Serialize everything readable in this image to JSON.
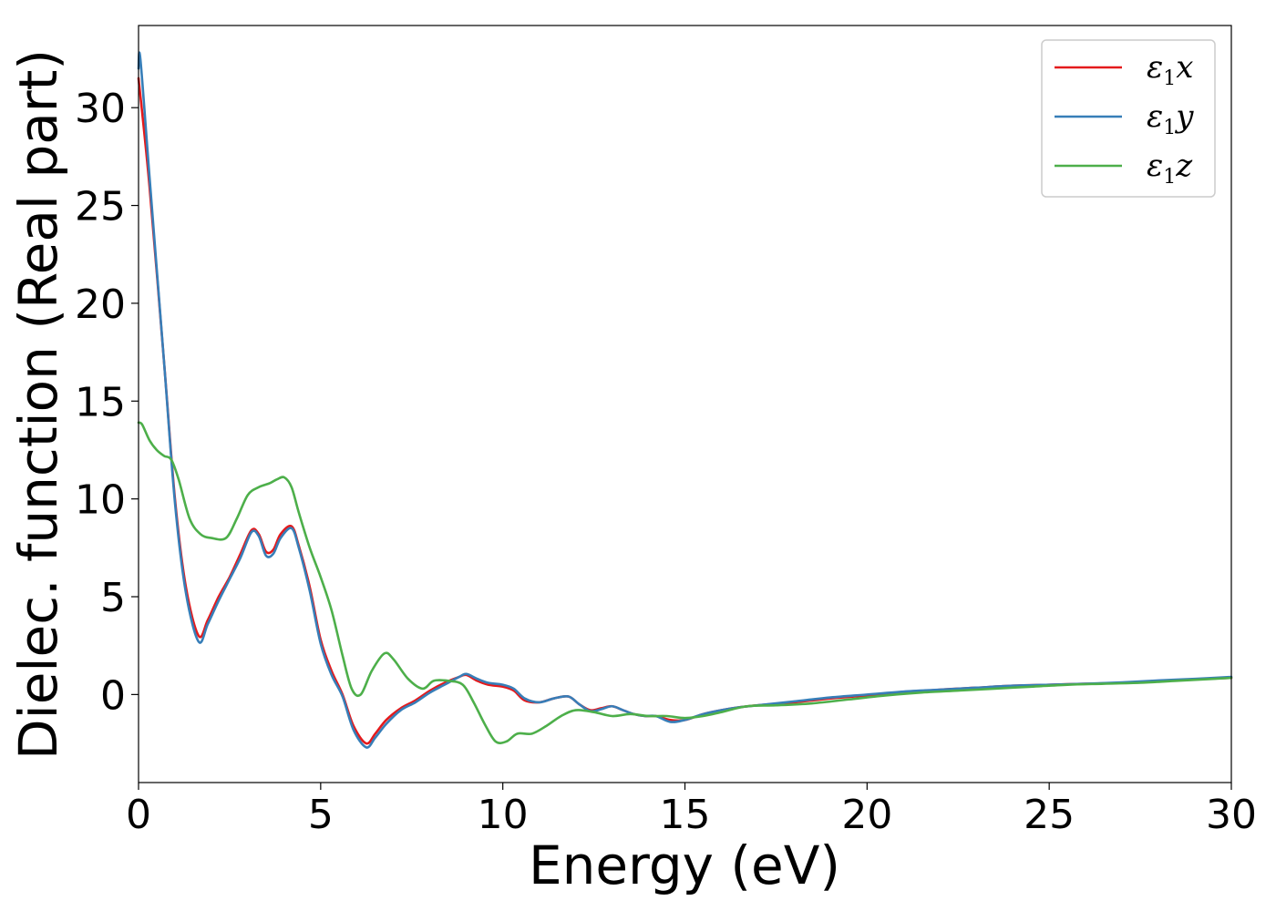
{
  "chart_data": {
    "type": "line",
    "title": "",
    "xlabel": "Energy (eV)",
    "ylabel": "Dielec. function (Real part)",
    "xlim": [
      0,
      30
    ],
    "ylim": [
      -4.5,
      34.2
    ],
    "xticks": [
      0,
      5,
      10,
      15,
      20,
      25,
      30
    ],
    "yticks": [
      0,
      5,
      10,
      15,
      20,
      25,
      30
    ],
    "grid": false,
    "legend_position": "top-right",
    "series": [
      {
        "name": "ε1x",
        "legend_symbol": "ε",
        "legend_sub": "1",
        "legend_var": "x",
        "color": "#e41a1c",
        "x": [
          0,
          0.3,
          0.7,
          1.0,
          1.3,
          1.65,
          1.9,
          2.2,
          2.5,
          2.8,
          3.1,
          3.3,
          3.5,
          3.7,
          3.9,
          4.2,
          4.4,
          4.7,
          5.0,
          5.3,
          5.6,
          5.9,
          6.25,
          6.5,
          6.8,
          7.2,
          7.6,
          8.0,
          8.4,
          8.8,
          9.0,
          9.3,
          9.6,
          10.0,
          10.3,
          10.6,
          11.0,
          11.4,
          11.8,
          12.1,
          12.4,
          12.7,
          13.0,
          13.3,
          13.6,
          13.9,
          14.2,
          14.6,
          15.0,
          15.5,
          16.0,
          16.5,
          17.0,
          18.0,
          19.0,
          20.0,
          21.0,
          22.0,
          23.0,
          24.0,
          25.0,
          26.0,
          27.0,
          28.0,
          29.0,
          30.0
        ],
        "y": [
          31.5,
          26.0,
          17.0,
          10.0,
          5.5,
          3.0,
          3.8,
          5.0,
          6.0,
          7.2,
          8.4,
          8.2,
          7.3,
          7.4,
          8.2,
          8.6,
          7.6,
          5.5,
          2.8,
          1.2,
          0.0,
          -1.6,
          -2.5,
          -2.0,
          -1.3,
          -0.7,
          -0.3,
          0.2,
          0.6,
          0.9,
          1.0,
          0.7,
          0.5,
          0.4,
          0.2,
          -0.3,
          -0.4,
          -0.2,
          -0.1,
          -0.5,
          -0.8,
          -0.7,
          -0.6,
          -0.8,
          -1.0,
          -1.1,
          -1.1,
          -1.3,
          -1.3,
          -1.0,
          -0.8,
          -0.65,
          -0.55,
          -0.4,
          -0.2,
          -0.05,
          0.1,
          0.25,
          0.35,
          0.45,
          0.5,
          0.55,
          0.6,
          0.7,
          0.78,
          0.85
        ]
      },
      {
        "name": "ε1y",
        "legend_symbol": "ε",
        "legend_sub": "1",
        "legend_var": "y",
        "color": "#377eb8",
        "x": [
          0,
          0.05,
          0.3,
          0.7,
          1.0,
          1.3,
          1.65,
          1.9,
          2.2,
          2.5,
          2.8,
          3.1,
          3.3,
          3.5,
          3.7,
          3.9,
          4.2,
          4.4,
          4.7,
          5.0,
          5.3,
          5.6,
          5.9,
          6.25,
          6.5,
          6.8,
          7.2,
          7.6,
          8.0,
          8.4,
          8.8,
          9.0,
          9.3,
          9.6,
          10.0,
          10.3,
          10.6,
          11.0,
          11.4,
          11.8,
          12.1,
          12.4,
          12.7,
          13.0,
          13.3,
          13.6,
          13.9,
          14.2,
          14.6,
          15.0,
          15.5,
          16.0,
          16.5,
          17.0,
          18.0,
          19.0,
          20.0,
          21.0,
          22.0,
          23.0,
          24.0,
          25.0,
          26.0,
          27.0,
          28.0,
          29.0,
          30.0
        ],
        "y": [
          32.0,
          32.5,
          26.5,
          17.0,
          9.8,
          5.2,
          2.7,
          3.6,
          4.8,
          5.9,
          7.0,
          8.3,
          8.1,
          7.1,
          7.2,
          8.0,
          8.5,
          7.5,
          5.3,
          2.6,
          1.0,
          -0.1,
          -1.8,
          -2.7,
          -2.2,
          -1.5,
          -0.8,
          -0.4,
          0.1,
          0.5,
          0.9,
          1.05,
          0.8,
          0.6,
          0.5,
          0.3,
          -0.2,
          -0.4,
          -0.2,
          -0.1,
          -0.5,
          -0.85,
          -0.75,
          -0.6,
          -0.8,
          -1.0,
          -1.1,
          -1.1,
          -1.4,
          -1.3,
          -1.0,
          -0.8,
          -0.65,
          -0.55,
          -0.35,
          -0.15,
          0.0,
          0.15,
          0.25,
          0.35,
          0.45,
          0.5,
          0.55,
          0.62,
          0.72,
          0.8,
          0.9
        ]
      },
      {
        "name": "ε1z",
        "legend_symbol": "ε",
        "legend_sub": "1",
        "legend_var": "z",
        "color": "#4daf4a",
        "x": [
          0,
          0.1,
          0.3,
          0.5,
          0.7,
          0.9,
          1.1,
          1.4,
          1.7,
          2.0,
          2.4,
          2.7,
          3.0,
          3.3,
          3.6,
          3.8,
          4.0,
          4.2,
          4.4,
          4.7,
          5.0,
          5.3,
          5.6,
          5.85,
          6.1,
          6.4,
          6.75,
          7.0,
          7.4,
          7.8,
          8.1,
          8.5,
          8.9,
          9.2,
          9.5,
          9.8,
          10.1,
          10.4,
          10.8,
          11.2,
          11.6,
          12.0,
          12.5,
          13.0,
          13.5,
          14.0,
          14.5,
          15.0,
          15.5,
          16.0,
          16.7,
          17.5,
          18.5,
          19.5,
          20.5,
          21.5,
          22.5,
          23.5,
          24.5,
          25.5,
          26.5,
          27.5,
          28.5,
          29.5,
          30.0
        ],
        "y": [
          13.9,
          13.8,
          13.0,
          12.5,
          12.2,
          12.0,
          11.0,
          9.0,
          8.2,
          8.0,
          8.0,
          9.0,
          10.2,
          10.6,
          10.8,
          11.0,
          11.1,
          10.6,
          9.3,
          7.5,
          6.0,
          4.3,
          2.0,
          0.3,
          0.0,
          1.2,
          2.1,
          1.8,
          0.8,
          0.3,
          0.7,
          0.7,
          0.5,
          -0.4,
          -1.5,
          -2.4,
          -2.4,
          -2.0,
          -2.0,
          -1.6,
          -1.1,
          -0.8,
          -0.9,
          -1.1,
          -1.0,
          -1.1,
          -1.1,
          -1.2,
          -1.1,
          -0.9,
          -0.6,
          -0.55,
          -0.45,
          -0.25,
          -0.05,
          0.1,
          0.2,
          0.3,
          0.4,
          0.5,
          0.55,
          0.6,
          0.7,
          0.8,
          0.85
        ]
      }
    ]
  }
}
